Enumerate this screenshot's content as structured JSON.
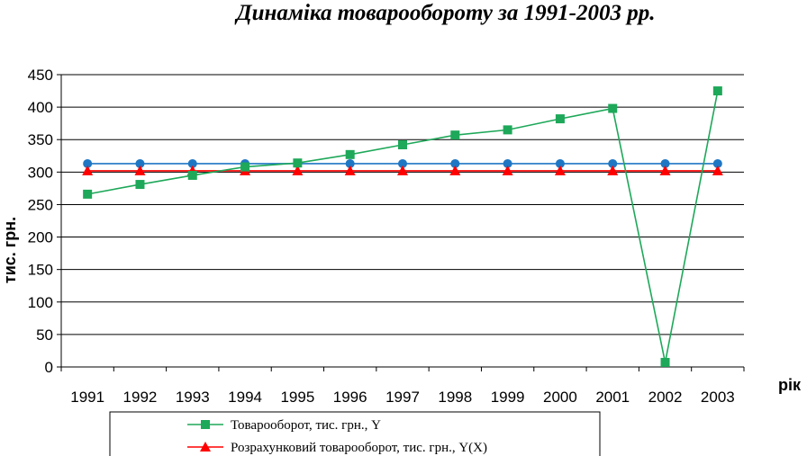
{
  "chart_data": {
    "type": "line",
    "title": "Динаміка товарообороту за 1991-2003 рр.",
    "xlabel": "рік",
    "ylabel": "тис. грн.",
    "x": [
      "1991",
      "1992",
      "1993",
      "1994",
      "1995",
      "1996",
      "1997",
      "1998",
      "1999",
      "2000",
      "2001",
      "2002",
      "2003"
    ],
    "ylim": [
      0,
      450
    ],
    "yticks": [
      0,
      50,
      100,
      150,
      200,
      250,
      300,
      350,
      400,
      450
    ],
    "grid": true,
    "legend_position": "bottom",
    "series": [
      {
        "name": "Товарооборот, тис. грн., Y",
        "values": [
          266,
          281,
          295,
          308,
          314,
          327,
          342,
          357,
          365,
          382,
          398,
          7,
          425
        ],
        "color": "#1ea859",
        "marker": "square"
      },
      {
        "name": "Розрахунковий товарооборот, тис. грн., Y(X)",
        "values": [
          302,
          302,
          302,
          302,
          302,
          302,
          302,
          302,
          302,
          302,
          302,
          302,
          302
        ],
        "color": "#ff0000",
        "marker": "triangle"
      },
      {
        "name": "",
        "values": [
          313,
          313,
          313,
          313,
          313,
          313,
          313,
          313,
          313,
          313,
          313,
          313,
          313
        ],
        "color": "#1f77c4",
        "marker": "circle"
      }
    ]
  }
}
